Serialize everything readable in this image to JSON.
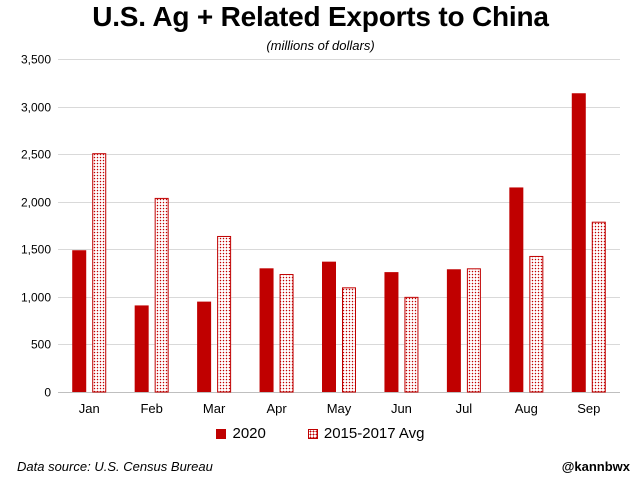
{
  "chart_data": {
    "type": "bar",
    "title": "U.S. Ag + Related Exports to China",
    "subtitle": "(millions of dollars)",
    "xlabel": "",
    "ylabel": "",
    "ylim": [
      0,
      3500
    ],
    "yticks": [
      0,
      500,
      1000,
      1500,
      2000,
      2500,
      3000,
      3500
    ],
    "ytick_labels": [
      "0",
      "500",
      "1,000",
      "1,500",
      "2,000",
      "2,500",
      "3,000",
      "3,500"
    ],
    "grid": true,
    "legend_position": "bottom",
    "categories": [
      "Jan",
      "Feb",
      "Mar",
      "Apr",
      "May",
      "Jun",
      "Jul",
      "Aug",
      "Sep"
    ],
    "series": [
      {
        "name": "2020",
        "style": "solid",
        "color": "#c00000",
        "values": [
          1490,
          910,
          950,
          1300,
          1370,
          1260,
          1290,
          2150,
          3140
        ]
      },
      {
        "name": "2015-2017 Avg",
        "style": "dotted",
        "color": "#c00000",
        "values": [
          2510,
          2040,
          1640,
          1240,
          1100,
          1000,
          1300,
          1430,
          1790
        ]
      }
    ]
  },
  "footer": {
    "source": "Data source: U.S. Census Bureau",
    "handle": "@kannbwx"
  },
  "colors": {
    "bar": "#c00000",
    "grid": "#d9d9d9",
    "axis": "#bfbfbf"
  }
}
